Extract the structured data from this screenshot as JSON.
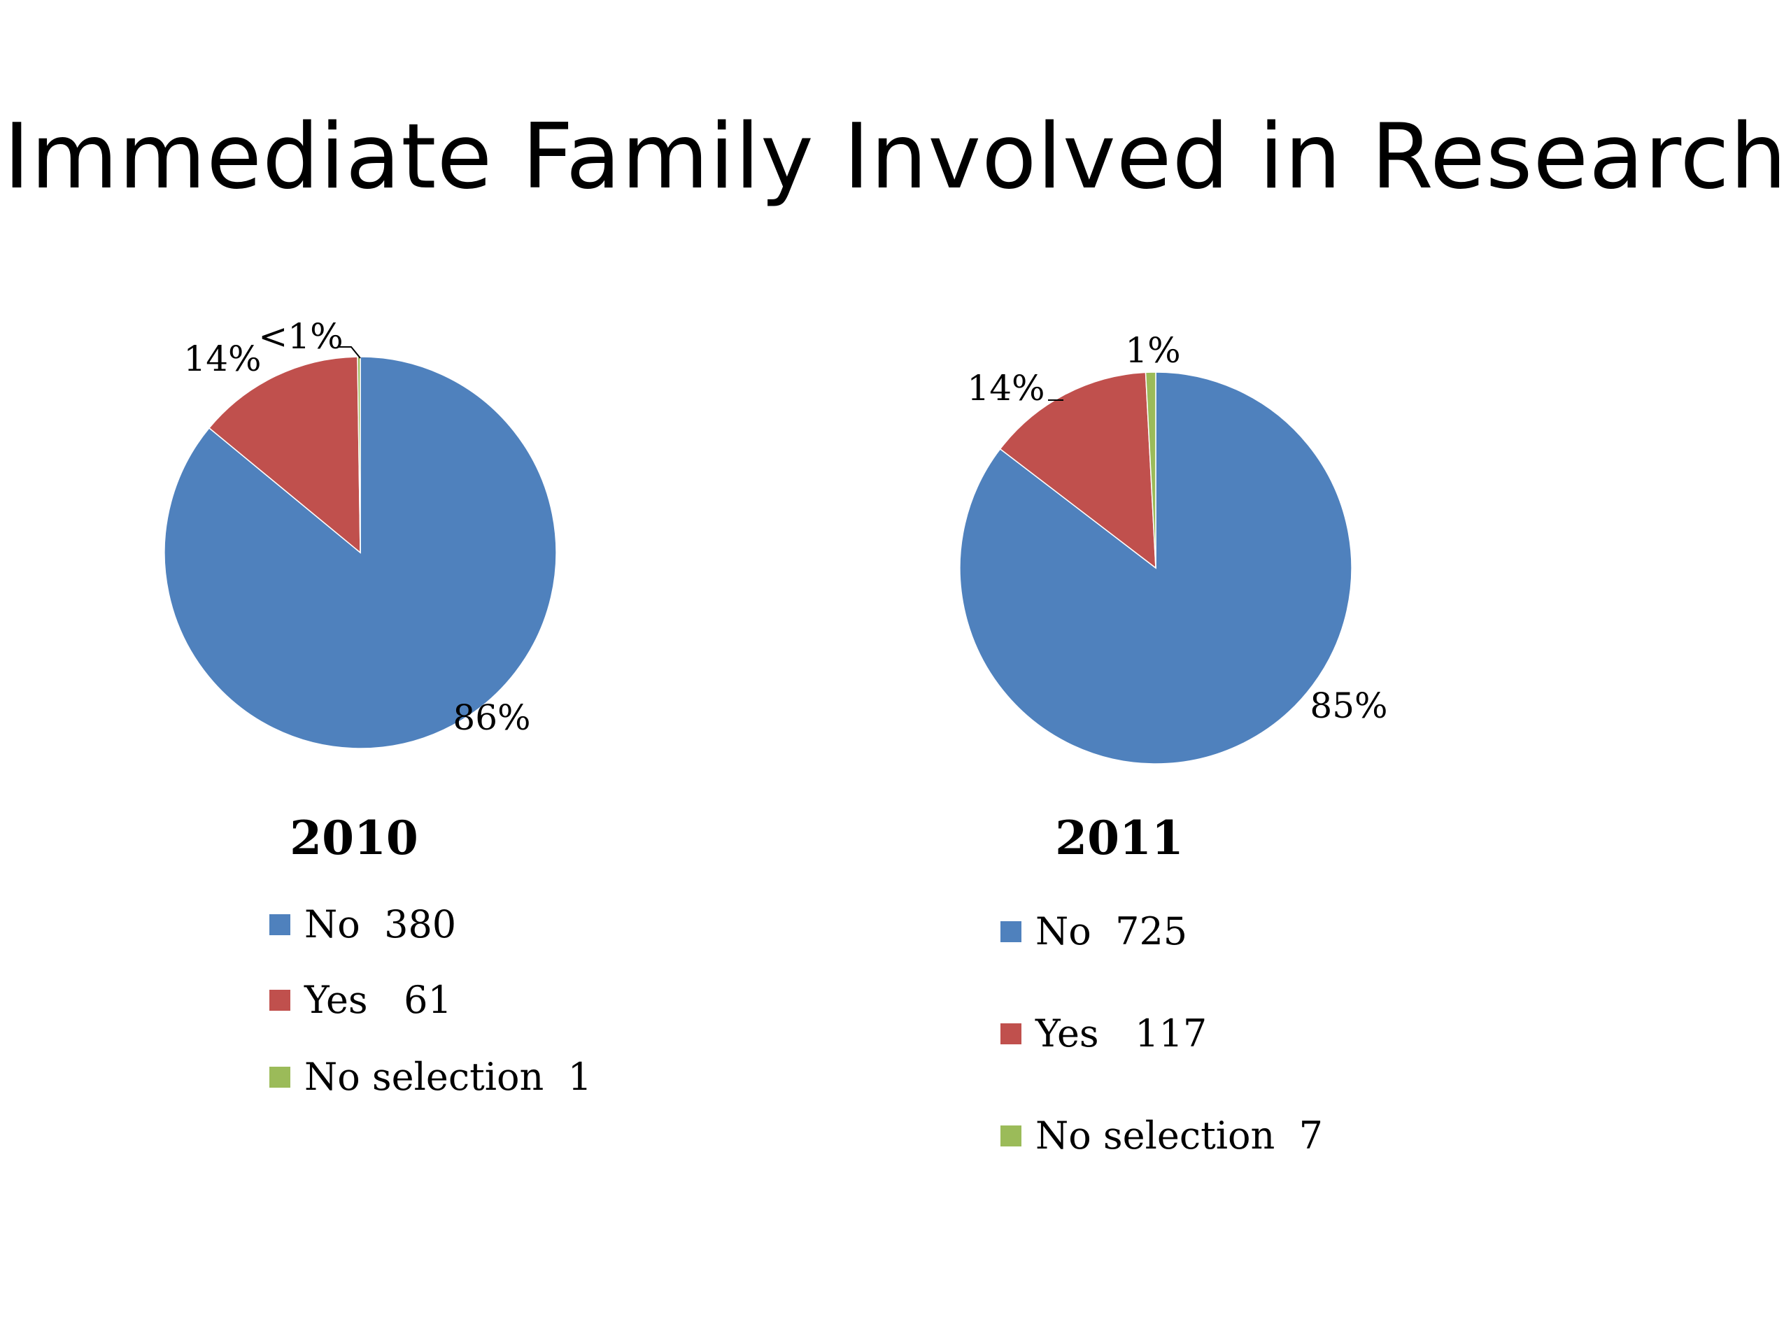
{
  "slide": {
    "title": "Immediate Family Involved in Research"
  },
  "chart_data": [
    {
      "type": "pie",
      "title": "2010",
      "categories": [
        "No",
        "Yes",
        "No selection"
      ],
      "values": [
        380,
        61,
        1
      ],
      "data_labels": [
        "86%",
        "14%",
        "<1%"
      ],
      "legend_labels": [
        "No  380",
        "Yes   61",
        "No selection  1"
      ],
      "colors": [
        "#4F81BD",
        "#C0504D",
        "#9BBB59"
      ]
    },
    {
      "type": "pie",
      "title": "2011",
      "categories": [
        "No",
        "Yes",
        "No selection"
      ],
      "values": [
        725,
        117,
        7
      ],
      "data_labels": [
        "85%",
        "14%",
        "1%"
      ],
      "legend_labels": [
        "No  725",
        "Yes   117",
        "No selection  7"
      ],
      "colors": [
        "#4F81BD",
        "#C0504D",
        "#9BBB59"
      ]
    }
  ]
}
